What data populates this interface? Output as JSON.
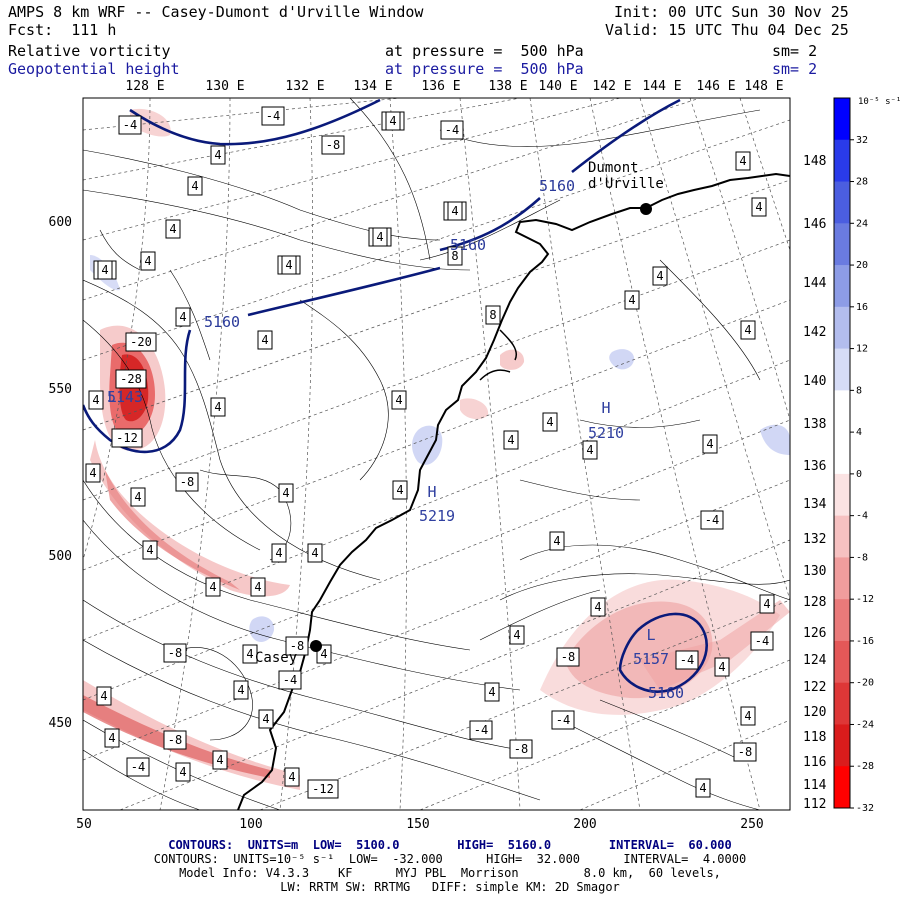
{
  "header": {
    "title": "AMPS 8 km WRF -- Casey-Dumont d'Urville Window",
    "init": "Init: 00 UTC Sun 30 Nov 25",
    "fcst": "Fcst:  111 h",
    "valid": "Valid: 15 UTC Thu 04 Dec 25",
    "field1": {
      "name": "Relative vorticity",
      "level": "at pressure =  500 hPa",
      "smooth": "sm= 2"
    },
    "field2": {
      "name": "Geopotential height",
      "level": "at pressure =  500 hPa",
      "smooth": "sm= 2"
    }
  },
  "map": {
    "top_lon_labels": [
      "128 E",
      "130 E",
      "132 E",
      "134 E",
      "136 E",
      "138 E",
      "140 E",
      "142 E",
      "144 E",
      "146 E",
      "148 E"
    ],
    "right_lon_labels": [
      "148 E",
      "146 E",
      "144 E",
      "142 E",
      "140 E",
      "138 E",
      "136 E",
      "134 E",
      "132 E",
      "130 E",
      "128 E",
      "126 E",
      "124 E",
      "122 E",
      "120 E",
      "118 E",
      "116 E",
      "114 E",
      "112 E"
    ],
    "x_ticks": [
      "50",
      "100",
      "150",
      "200",
      "250"
    ],
    "y_ticks": [
      "600",
      "550",
      "500",
      "450"
    ],
    "stations": [
      {
        "name": "Dumont\nd'Urville"
      },
      {
        "name": "Casey"
      }
    ],
    "pressure_centers": [
      {
        "type": "H",
        "value": "5210"
      },
      {
        "type": "H",
        "value": "5219"
      },
      {
        "type": "L",
        "value": "5157"
      },
      {
        "type": "L",
        "value": "5143"
      }
    ],
    "height_labels": [
      "5160",
      "5160",
      "5160",
      "5160"
    ],
    "vort_labels": [
      "-8",
      "-4",
      "-4",
      "-4",
      "4",
      "4",
      "4",
      "4",
      "-4",
      "4",
      "-4",
      "4",
      "-4",
      "4",
      "4",
      "-4",
      "4",
      "4",
      "4",
      "8",
      "4",
      "4",
      "4",
      "4",
      "4",
      "-20",
      "-28",
      "-12",
      "4",
      "4",
      "4",
      "4",
      "4",
      "4",
      "4",
      "-8",
      "-4",
      "4",
      "4",
      "4",
      "4",
      "4",
      "4",
      "4",
      "4",
      "-4",
      "-8",
      "4",
      "-4",
      "-8",
      "4",
      "4",
      "4",
      "4",
      "-8",
      "-4",
      "4",
      "4",
      "-8",
      "-8",
      "-4",
      "-4",
      "4",
      "4",
      "4",
      "4",
      "-12",
      "-4",
      "4",
      "4",
      "4",
      "-8",
      "4",
      "-4",
      "-4",
      "4",
      "-4",
      "-8",
      "4",
      "4",
      "4",
      "4",
      "4",
      "4",
      "4",
      "4",
      "8",
      "4",
      "4",
      "4"
    ]
  },
  "colorbar": {
    "unit_label": "10⁻⁵ s⁻¹",
    "levels": [
      "32",
      "28",
      "24",
      "20",
      "16",
      "12",
      "8",
      "4",
      "0",
      "-4",
      "-8",
      "-12",
      "-16",
      "-20",
      "-24",
      "-28",
      "-32"
    ],
    "colors": [
      "#0000ff",
      "#2a3bea",
      "#4b5ee0",
      "#6a7be0",
      "#8d9ce6",
      "#b3bdee",
      "#d6dcf6",
      "#ffffff",
      "#ffffff",
      "#fbe3e3",
      "#f6c1c1",
      "#f09d9d",
      "#ea7a7a",
      "#e45858",
      "#de3737",
      "#da1c1c",
      "#ff0000"
    ]
  },
  "footer": {
    "line1": "CONTOURS:  UNITS=m  LOW=  5100.0        HIGH=  5160.0        INTERVAL=  60.000",
    "line2": "CONTOURS:  UNITS=10⁻⁵ s⁻¹  LOW=  -32.000      HIGH=  32.000      INTERVAL=  4.0000",
    "line3": "Model Info: V4.3.3    KF      MYJ PBL  Morrison         8.0 km,  60 levels,",
    "line4": "LW: RRTM SW: RRTMG   DIFF: simple KM: 2D Smagor"
  },
  "colors": {
    "height_contour": "#0a1a7a",
    "frame": "#000000",
    "pos_shade": "#7088e0",
    "neg_shade": "#e05050"
  }
}
